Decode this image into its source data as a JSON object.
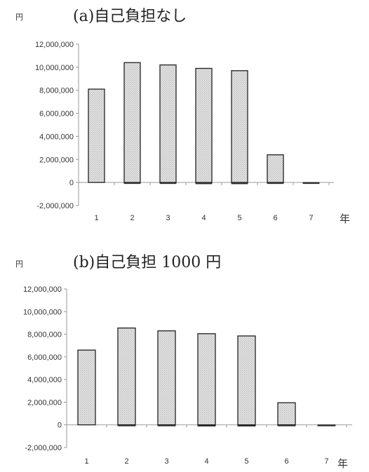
{
  "chart_data": [
    {
      "type": "bar",
      "title": "(a)自己負担なし",
      "ylabel": "円",
      "xlabel": "年",
      "categories": [
        "1",
        "2",
        "3",
        "4",
        "5",
        "6",
        "7"
      ],
      "values": [
        8100000,
        10400000,
        10200000,
        9900000,
        9700000,
        2400000,
        0
      ],
      "negative_values": [
        0,
        -50000,
        -100000,
        -120000,
        -120000,
        -100000,
        -60000
      ],
      "ylim": [
        -2000000,
        12000000
      ],
      "yticks": [
        "12,000,000",
        "10,000,000",
        "8,000,000",
        "6,000,000",
        "4,000,000",
        "2,000,000",
        "0",
        "-2,000,000"
      ],
      "ytick_values": [
        12000000,
        10000000,
        8000000,
        6000000,
        4000000,
        2000000,
        0,
        -2000000
      ],
      "grid": false,
      "legend": "none",
      "bar_fill": "#dcdcdc",
      "bar_edge": "#222222"
    },
    {
      "type": "bar",
      "title": "(b)自己負担 1000 円",
      "ylabel": "円",
      "xlabel": "年",
      "categories": [
        "1",
        "2",
        "3",
        "4",
        "5",
        "6",
        "7"
      ],
      "values": [
        6600000,
        8550000,
        8300000,
        8050000,
        7850000,
        1950000,
        0
      ],
      "negative_values": [
        0,
        -50000,
        -100000,
        -120000,
        -120000,
        -100000,
        -60000
      ],
      "ylim": [
        -2000000,
        12000000
      ],
      "yticks": [
        "12,000,000",
        "10,000,000",
        "8,000,000",
        "6,000,000",
        "4,000,000",
        "2,000,000",
        "0",
        "-2,000,000"
      ],
      "ytick_values": [
        12000000,
        10000000,
        8000000,
        6000000,
        4000000,
        2000000,
        0,
        -2000000
      ],
      "grid": false,
      "legend": "none",
      "bar_fill": "#dcdcdc",
      "bar_edge": "#222222"
    }
  ]
}
